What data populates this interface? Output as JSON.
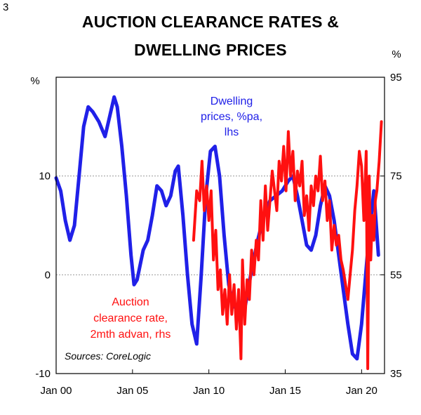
{
  "page": {
    "number": "3"
  },
  "colors": {
    "dwelling": "#2020e8",
    "auction": "#ff1010",
    "grid": "#8c8c8c"
  },
  "chart_data": {
    "type": "line",
    "title": "AUCTION CLEARANCE RATES & DWELLING PRICES",
    "title_lines": [
      "AUCTION CLEARANCE RATES &",
      "DWELLING PRICES"
    ],
    "left_axis": {
      "unit": "%",
      "range": [
        -10,
        20
      ],
      "ticks": [
        -10,
        0,
        10
      ],
      "tick_labels": [
        "-10",
        "0",
        "10"
      ]
    },
    "right_axis": {
      "unit": "%",
      "range": [
        35,
        95
      ],
      "ticks": [
        35,
        55,
        75,
        95
      ],
      "tick_labels": [
        "35",
        "55",
        "75",
        "95"
      ]
    },
    "x_axis": {
      "range": [
        2000.0,
        2021.5
      ],
      "ticks": [
        2000,
        2005,
        2010,
        2015,
        2020
      ],
      "tick_labels": [
        "Jan 00",
        "Jan 05",
        "Jan 10",
        "Jan 15",
        "Jan 20"
      ]
    },
    "gridlines": [
      10,
      0
    ],
    "series": [
      {
        "name": "Dwelling prices, %pa, lhs",
        "label_lines": [
          "Dwelling",
          "prices, %pa,",
          "lhs"
        ],
        "axis": "left",
        "x": [
          2000.0,
          2000.3,
          2000.6,
          2000.9,
          2001.2,
          2001.5,
          2001.8,
          2002.1,
          2002.4,
          2002.8,
          2003.2,
          2003.5,
          2003.8,
          2004.0,
          2004.3,
          2004.6,
          2004.9,
          2005.1,
          2005.3,
          2005.7,
          2006.0,
          2006.3,
          2006.6,
          2006.9,
          2007.2,
          2007.5,
          2007.8,
          2008.0,
          2008.3,
          2008.6,
          2008.9,
          2009.2,
          2009.5,
          2009.8,
          2010.1,
          2010.4,
          2010.7,
          2011.0,
          2011.3,
          2011.6,
          2012.0,
          2012.4,
          2012.8,
          2013.2,
          2013.6,
          2014.0,
          2014.4,
          2014.8,
          2015.2,
          2015.5,
          2015.8,
          2016.1,
          2016.4,
          2016.7,
          2017.0,
          2017.3,
          2017.6,
          2017.9,
          2018.2,
          2018.5,
          2018.8,
          2019.1,
          2019.4,
          2019.7,
          2020.0,
          2020.4,
          2020.8,
          2021.1
        ],
        "values": [
          9.8,
          8.5,
          5.5,
          3.5,
          5.0,
          10.0,
          15.0,
          17.0,
          16.5,
          15.5,
          14.0,
          16.0,
          18.0,
          17.0,
          13.0,
          8.0,
          2.0,
          -1.0,
          -0.5,
          2.5,
          3.5,
          6.0,
          9.0,
          8.5,
          7.0,
          8.0,
          10.5,
          11.0,
          6.0,
          0.0,
          -5.0,
          -7.0,
          0.0,
          8.0,
          12.5,
          13.0,
          10.0,
          4.0,
          -1.0,
          -3.0,
          -4.0,
          -3.0,
          0.5,
          3.5,
          6.0,
          7.5,
          8.0,
          8.5,
          9.5,
          10.0,
          8.0,
          5.5,
          3.0,
          2.5,
          4.0,
          7.0,
          9.0,
          8.0,
          5.5,
          2.0,
          -1.5,
          -5.0,
          -8.0,
          -8.5,
          -5.0,
          2.5,
          8.5,
          2.0
        ]
      },
      {
        "name": "Auction clearance rate, 2mth advan, rhs",
        "label_lines": [
          "Auction",
          "clearance rate,",
          "2mth advan, rhs"
        ],
        "axis": "right",
        "x": [
          2009.0,
          2009.2,
          2009.4,
          2009.55,
          2009.7,
          2009.85,
          2010.0,
          2010.15,
          2010.3,
          2010.45,
          2010.6,
          2010.75,
          2010.9,
          2011.05,
          2011.2,
          2011.35,
          2011.5,
          2011.65,
          2011.8,
          2011.95,
          2012.1,
          2012.2,
          2012.35,
          2012.5,
          2012.65,
          2012.8,
          2012.95,
          2013.1,
          2013.25,
          2013.4,
          2013.55,
          2013.7,
          2013.85,
          2014.0,
          2014.15,
          2014.3,
          2014.45,
          2014.6,
          2014.75,
          2014.9,
          2015.05,
          2015.2,
          2015.35,
          2015.5,
          2015.65,
          2015.8,
          2015.95,
          2016.1,
          2016.25,
          2016.4,
          2016.55,
          2016.7,
          2016.85,
          2017.0,
          2017.15,
          2017.3,
          2017.45,
          2017.6,
          2017.75,
          2017.9,
          2018.05,
          2018.2,
          2018.35,
          2018.5,
          2018.65,
          2018.8,
          2018.95,
          2019.1,
          2019.25,
          2019.4,
          2019.55,
          2019.7,
          2019.85,
          2020.0,
          2020.15,
          2020.3,
          2020.4,
          2020.5,
          2020.6,
          2020.7,
          2020.8,
          2020.9,
          2021.0,
          2021.15,
          2021.3
        ],
        "values": [
          62,
          72,
          70,
          78,
          68,
          73,
          66,
          72,
          58,
          64,
          52,
          56,
          47,
          52,
          45,
          55,
          47,
          53,
          44,
          52,
          38,
          58,
          45,
          54,
          50,
          60,
          55,
          62,
          58,
          70,
          62,
          73,
          64,
          70,
          76,
          72,
          68,
          78,
          74,
          81,
          72,
          84,
          75,
          80,
          70,
          76,
          73,
          78,
          67,
          71,
          64,
          73,
          69,
          75,
          72,
          79,
          70,
          74,
          66,
          70,
          60,
          65,
          61,
          63,
          58,
          56,
          53,
          50,
          55,
          60,
          68,
          73,
          80,
          77,
          66,
          80,
          36,
          75,
          58,
          67,
          62,
          70,
          72,
          78,
          86
        ]
      }
    ],
    "source": "Sources: CoreLogic"
  }
}
